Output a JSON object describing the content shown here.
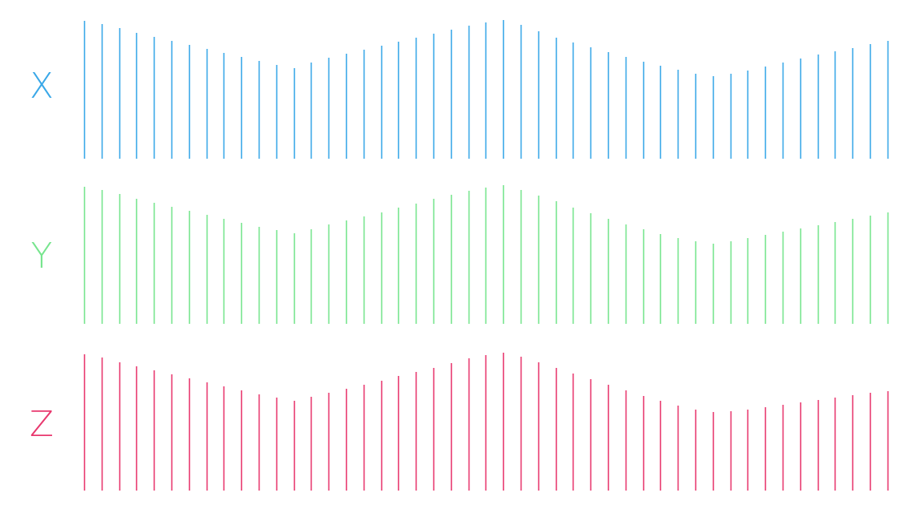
{
  "chart_data": {
    "type": "bar",
    "panels": [
      {
        "label": "X",
        "color": "#3aa8e8",
        "values": [
          172,
          168,
          163,
          157,
          152,
          147,
          142,
          137,
          132,
          127,
          122,
          117,
          113,
          120,
          126,
          131,
          136,
          141,
          146,
          151,
          156,
          161,
          166,
          170,
          173,
          167,
          159,
          151,
          145,
          139,
          133,
          127,
          121,
          116,
          111,
          106,
          103,
          106,
          110,
          115,
          120,
          125,
          130,
          134,
          138,
          143,
          147
        ]
      },
      {
        "label": "Y",
        "color": "#77e58e",
        "values": [
          171,
          167,
          162,
          156,
          151,
          146,
          141,
          136,
          131,
          126,
          121,
          117,
          113,
          118,
          124,
          129,
          134,
          139,
          145,
          150,
          156,
          161,
          166,
          170,
          173,
          167,
          160,
          153,
          145,
          138,
          131,
          124,
          118,
          112,
          107,
          103,
          100,
          103,
          107,
          111,
          115,
          119,
          123,
          127,
          131,
          135,
          139
        ]
      },
      {
        "label": "Z",
        "color": "#e8386e",
        "values": [
          170,
          166,
          160,
          155,
          150,
          145,
          140,
          135,
          130,
          125,
          120,
          116,
          112,
          117,
          122,
          127,
          132,
          137,
          143,
          148,
          153,
          159,
          165,
          169,
          172,
          167,
          160,
          153,
          146,
          139,
          132,
          125,
          118,
          112,
          106,
          101,
          98,
          99,
          101,
          104,
          107,
          110,
          113,
          116,
          119,
          122,
          124
        ]
      }
    ]
  }
}
